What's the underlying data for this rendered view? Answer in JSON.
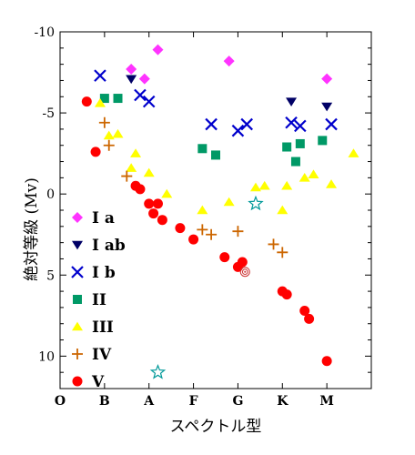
{
  "chart_data": {
    "type": "scatter",
    "xlabel": "スペクトル型",
    "ylabel": "絶対等級 (Mv)",
    "categories": [
      "O",
      "B",
      "A",
      "F",
      "G",
      "K",
      "M"
    ],
    "xlim": [
      0,
      7.0
    ],
    "ylim": [
      12,
      -10
    ],
    "y_inverted": true,
    "yticks": [
      -10,
      -5,
      0,
      5,
      10
    ],
    "ytick_labels": [
      "-10",
      "-5",
      "0",
      "5",
      "10"
    ],
    "legend_position": "left",
    "series": [
      {
        "name": "I a",
        "marker": "diamond",
        "color": "#ff33ff",
        "points": [
          [
            1.6,
            -7.7
          ],
          [
            1.9,
            -7.1
          ],
          [
            2.2,
            -8.9
          ],
          [
            3.8,
            -8.2
          ],
          [
            6.0,
            -7.1
          ]
        ]
      },
      {
        "name": "I ab",
        "marker": "triangle-down",
        "color": "#000066",
        "points": [
          [
            1.6,
            -7.1
          ],
          [
            5.2,
            -5.7
          ],
          [
            6.0,
            -5.4
          ]
        ]
      },
      {
        "name": "I b",
        "marker": "x",
        "color": "#0000cc",
        "points": [
          [
            0.9,
            -7.3
          ],
          [
            1.8,
            -6.1
          ],
          [
            2.0,
            -5.7
          ],
          [
            3.4,
            -4.3
          ],
          [
            4.0,
            -3.9
          ],
          [
            4.2,
            -4.3
          ],
          [
            5.2,
            -4.4
          ],
          [
            5.4,
            -4.2
          ],
          [
            6.1,
            -4.3
          ]
        ]
      },
      {
        "name": "II",
        "marker": "square",
        "color": "#009966",
        "points": [
          [
            1.0,
            -5.9
          ],
          [
            1.3,
            -5.9
          ],
          [
            3.2,
            -2.8
          ],
          [
            3.5,
            -2.4
          ],
          [
            5.1,
            -2.9
          ],
          [
            5.3,
            -2.0
          ],
          [
            5.4,
            -3.1
          ],
          [
            5.9,
            -3.3
          ]
        ]
      },
      {
        "name": "III",
        "marker": "triangle-up",
        "color": "#ffff00",
        "points": [
          [
            0.9,
            -5.6
          ],
          [
            1.1,
            -3.6
          ],
          [
            1.3,
            -3.7
          ],
          [
            1.6,
            -1.6
          ],
          [
            1.7,
            -2.5
          ],
          [
            2.0,
            -1.3
          ],
          [
            2.4,
            0.0
          ],
          [
            3.2,
            1.0
          ],
          [
            3.8,
            0.5
          ],
          [
            4.4,
            -0.4
          ],
          [
            4.6,
            -0.5
          ],
          [
            5.0,
            1.0
          ],
          [
            5.1,
            -0.5
          ],
          [
            5.5,
            -1.0
          ],
          [
            5.7,
            -1.2
          ],
          [
            6.1,
            -0.6
          ],
          [
            6.6,
            -2.5
          ]
        ]
      },
      {
        "name": "IV",
        "marker": "plus",
        "color": "#cc6600",
        "points": [
          [
            1.0,
            -4.4
          ],
          [
            1.1,
            -3.0
          ],
          [
            1.5,
            -1.1
          ],
          [
            3.2,
            2.2
          ],
          [
            3.4,
            2.5
          ],
          [
            4.0,
            2.3
          ],
          [
            4.8,
            3.1
          ],
          [
            5.0,
            3.6
          ]
        ]
      },
      {
        "name": "V",
        "marker": "circle",
        "color": "#ff0000",
        "points": [
          [
            0.6,
            -5.7
          ],
          [
            0.8,
            -2.6
          ],
          [
            1.7,
            -0.5
          ],
          [
            1.8,
            -0.3
          ],
          [
            2.0,
            0.6
          ],
          [
            2.1,
            1.2
          ],
          [
            2.2,
            0.6
          ],
          [
            2.3,
            1.6
          ],
          [
            2.7,
            2.1
          ],
          [
            3.0,
            2.8
          ],
          [
            3.7,
            3.9
          ],
          [
            4.0,
            4.5
          ],
          [
            4.1,
            4.2
          ],
          [
            5.0,
            6.0
          ],
          [
            5.1,
            6.2
          ],
          [
            5.5,
            7.2
          ],
          [
            5.6,
            7.7
          ],
          [
            6.0,
            10.3
          ]
        ]
      },
      {
        "name": "",
        "marker": "star",
        "color": "#009999",
        "points": [
          [
            4.4,
            0.6
          ],
          [
            2.2,
            11.0
          ]
        ]
      },
      {
        "name": "",
        "marker": "sun",
        "color": "#cc3333",
        "points": [
          [
            4.16,
            4.8
          ]
        ]
      }
    ]
  }
}
